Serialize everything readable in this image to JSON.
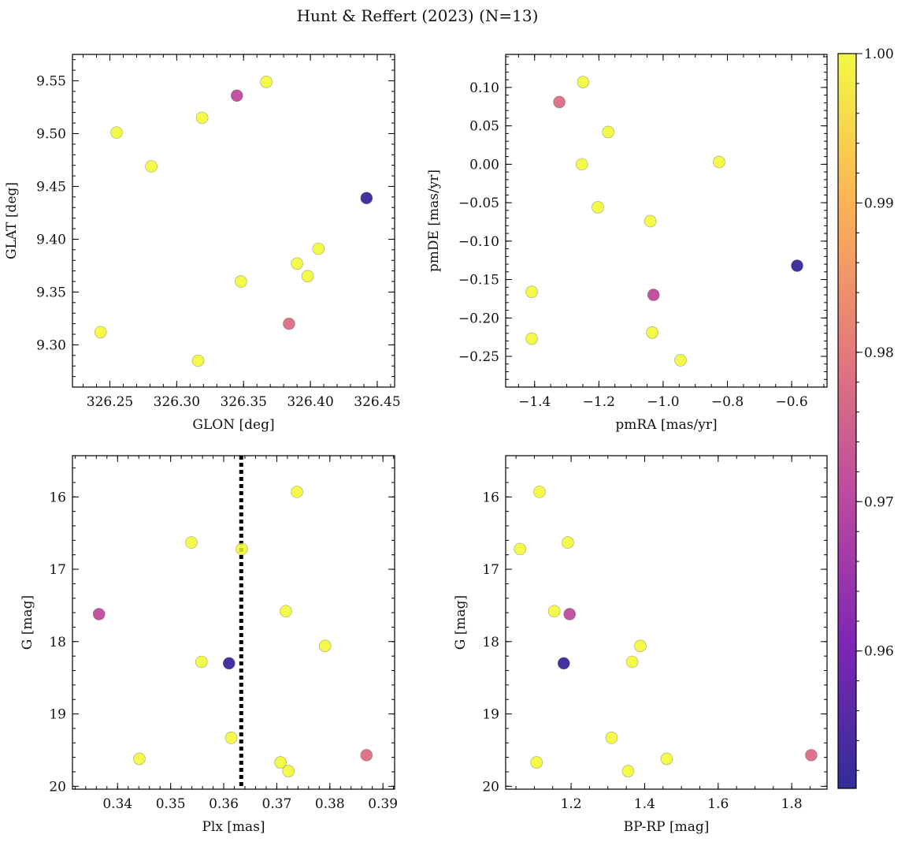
{
  "title": "Hunt & Reffert (2023) (N=13)",
  "chart_data": [
    {
      "type": "scatter",
      "name": "glon-glat",
      "xlabel": "GLON [deg]",
      "ylabel": "GLAT [deg]",
      "xlim": [
        326.222,
        326.463
      ],
      "ylim": [
        9.26,
        9.575
      ],
      "y_inverted": false,
      "xticks": [
        326.25,
        326.3,
        326.35,
        326.4,
        326.45
      ],
      "xtick_labels": [
        "326.25",
        "326.30",
        "326.35",
        "326.40",
        "326.45"
      ],
      "x_minor_step": 0.01,
      "yticks": [
        9.3,
        9.35,
        9.4,
        9.45,
        9.5,
        9.55
      ],
      "ytick_labels": [
        "9.30",
        "9.35",
        "9.40",
        "9.45",
        "9.50",
        "9.55"
      ],
      "y_minor_step": 0.01,
      "points": [
        {
          "x": 326.255,
          "y": 9.501,
          "c": 1.0
        },
        {
          "x": 326.281,
          "y": 9.469,
          "c": 1.0
        },
        {
          "x": 326.319,
          "y": 9.515,
          "c": 1.0
        },
        {
          "x": 326.345,
          "y": 9.536,
          "c": 0.971
        },
        {
          "x": 326.367,
          "y": 9.549,
          "c": 1.0
        },
        {
          "x": 326.442,
          "y": 9.439,
          "c": 0.952
        },
        {
          "x": 326.406,
          "y": 9.391,
          "c": 1.0
        },
        {
          "x": 326.39,
          "y": 9.377,
          "c": 1.0
        },
        {
          "x": 326.398,
          "y": 9.365,
          "c": 1.0
        },
        {
          "x": 326.348,
          "y": 9.36,
          "c": 1.0
        },
        {
          "x": 326.384,
          "y": 9.32,
          "c": 0.978
        },
        {
          "x": 326.243,
          "y": 9.312,
          "c": 1.0
        },
        {
          "x": 326.316,
          "y": 9.285,
          "c": 1.0
        }
      ]
    },
    {
      "type": "scatter",
      "name": "pmra-pmde",
      "xlabel": "pmRA [mas/yr]",
      "ylabel": "pmDE [mas/yr]",
      "xlim": [
        -1.49,
        -0.49
      ],
      "ylim": [
        -0.29,
        0.143
      ],
      "y_inverted": false,
      "xticks": [
        -1.4,
        -1.2,
        -1.0,
        -0.8,
        -0.6
      ],
      "xtick_labels": [
        "−1.4",
        "−1.2",
        "−1.0",
        "−0.8",
        "−0.6"
      ],
      "x_minor_step": 0.05,
      "yticks": [
        -0.25,
        -0.2,
        -0.15,
        -0.1,
        -0.05,
        0.0,
        0.05,
        0.1
      ],
      "ytick_labels": [
        "−0.25",
        "−0.20",
        "−0.15",
        "−0.10",
        "−0.05",
        "0.00",
        "0.05",
        "0.10"
      ],
      "y_minor_step": 0.01,
      "points": [
        {
          "x": -1.249,
          "y": 0.107,
          "c": 1.0
        },
        {
          "x": -1.323,
          "y": 0.081,
          "c": 0.978
        },
        {
          "x": -1.171,
          "y": 0.042,
          "c": 1.0
        },
        {
          "x": -1.253,
          "y": 0.0,
          "c": 1.0
        },
        {
          "x": -0.826,
          "y": 0.003,
          "c": 1.0
        },
        {
          "x": -1.203,
          "y": -0.056,
          "c": 1.0
        },
        {
          "x": -1.04,
          "y": -0.074,
          "c": 1.0
        },
        {
          "x": -0.583,
          "y": -0.132,
          "c": 0.952
        },
        {
          "x": -1.409,
          "y": -0.166,
          "c": 1.0
        },
        {
          "x": -1.03,
          "y": -0.17,
          "c": 0.971
        },
        {
          "x": -1.409,
          "y": -0.227,
          "c": 1.0
        },
        {
          "x": -1.034,
          "y": -0.219,
          "c": 1.0
        },
        {
          "x": -0.946,
          "y": -0.255,
          "c": 1.0
        }
      ]
    },
    {
      "type": "scatter",
      "name": "plx-g",
      "xlabel": "Plx [mas]",
      "ylabel": "G [mag]",
      "xlim": [
        0.3315,
        0.3922
      ],
      "ylim": [
        20.04,
        15.43
      ],
      "y_inverted": true,
      "xticks": [
        0.34,
        0.35,
        0.36,
        0.37,
        0.38,
        0.39
      ],
      "xtick_labels": [
        "0.34",
        "0.35",
        "0.36",
        "0.37",
        "0.38",
        "0.39"
      ],
      "x_minor_step": 0.002,
      "yticks": [
        16,
        17,
        18,
        19,
        20
      ],
      "ytick_labels": [
        "16",
        "17",
        "18",
        "19",
        "20"
      ],
      "y_minor_step": 0.2,
      "vline": 0.3633,
      "points": [
        {
          "x": 0.3738,
          "y": 15.93,
          "c": 1.0
        },
        {
          "x": 0.3539,
          "y": 16.63,
          "c": 1.0
        },
        {
          "x": 0.3634,
          "y": 16.72,
          "c": 1.0
        },
        {
          "x": 0.3365,
          "y": 17.62,
          "c": 0.971
        },
        {
          "x": 0.3717,
          "y": 17.58,
          "c": 1.0
        },
        {
          "x": 0.3791,
          "y": 18.06,
          "c": 1.0
        },
        {
          "x": 0.3558,
          "y": 18.28,
          "c": 1.0
        },
        {
          "x": 0.361,
          "y": 18.3,
          "c": 0.952
        },
        {
          "x": 0.3614,
          "y": 19.33,
          "c": 1.0
        },
        {
          "x": 0.3441,
          "y": 19.62,
          "c": 1.0
        },
        {
          "x": 0.3869,
          "y": 19.57,
          "c": 0.978
        },
        {
          "x": 0.3707,
          "y": 19.67,
          "c": 1.0
        },
        {
          "x": 0.3722,
          "y": 19.79,
          "c": 1.0
        }
      ]
    },
    {
      "type": "scatter",
      "name": "bprp-g",
      "xlabel": "BP-RP [mag]",
      "ylabel": "G [mag]",
      "xlim": [
        1.022,
        1.896
      ],
      "ylim": [
        20.04,
        15.43
      ],
      "y_inverted": true,
      "xticks": [
        1.2,
        1.4,
        1.6,
        1.8
      ],
      "xtick_labels": [
        "1.2",
        "1.4",
        "1.6",
        "1.8"
      ],
      "x_minor_step": 0.05,
      "yticks": [
        16,
        17,
        18,
        19,
        20
      ],
      "ytick_labels": [
        "16",
        "17",
        "18",
        "19",
        "20"
      ],
      "y_minor_step": 0.2,
      "points": [
        {
          "x": 1.114,
          "y": 15.93,
          "c": 1.0
        },
        {
          "x": 1.061,
          "y": 16.72,
          "c": 1.0
        },
        {
          "x": 1.191,
          "y": 16.63,
          "c": 1.0
        },
        {
          "x": 1.154,
          "y": 17.58,
          "c": 1.0
        },
        {
          "x": 1.196,
          "y": 17.62,
          "c": 0.971
        },
        {
          "x": 1.388,
          "y": 18.06,
          "c": 1.0
        },
        {
          "x": 1.366,
          "y": 18.28,
          "c": 1.0
        },
        {
          "x": 1.18,
          "y": 18.3,
          "c": 0.952
        },
        {
          "x": 1.31,
          "y": 19.33,
          "c": 1.0
        },
        {
          "x": 1.46,
          "y": 19.62,
          "c": 1.0
        },
        {
          "x": 1.853,
          "y": 19.57,
          "c": 0.978
        },
        {
          "x": 1.106,
          "y": 19.67,
          "c": 1.0
        },
        {
          "x": 1.355,
          "y": 19.79,
          "c": 1.0
        }
      ]
    }
  ],
  "colorbar": {
    "cmap": "plasma",
    "range": [
      0.9508,
      1.0
    ],
    "ticks": [
      0.96,
      0.97,
      0.98,
      0.99,
      1.0
    ],
    "tick_labels": [
      "0.96",
      "0.97",
      "0.98",
      "0.99",
      "1.00"
    ],
    "minor_step": 0.002
  },
  "colors": {
    "plasma_stops": [
      "#0d0887",
      "#6a00a8",
      "#b12a90",
      "#e16462",
      "#fca636",
      "#f0f921"
    ]
  }
}
